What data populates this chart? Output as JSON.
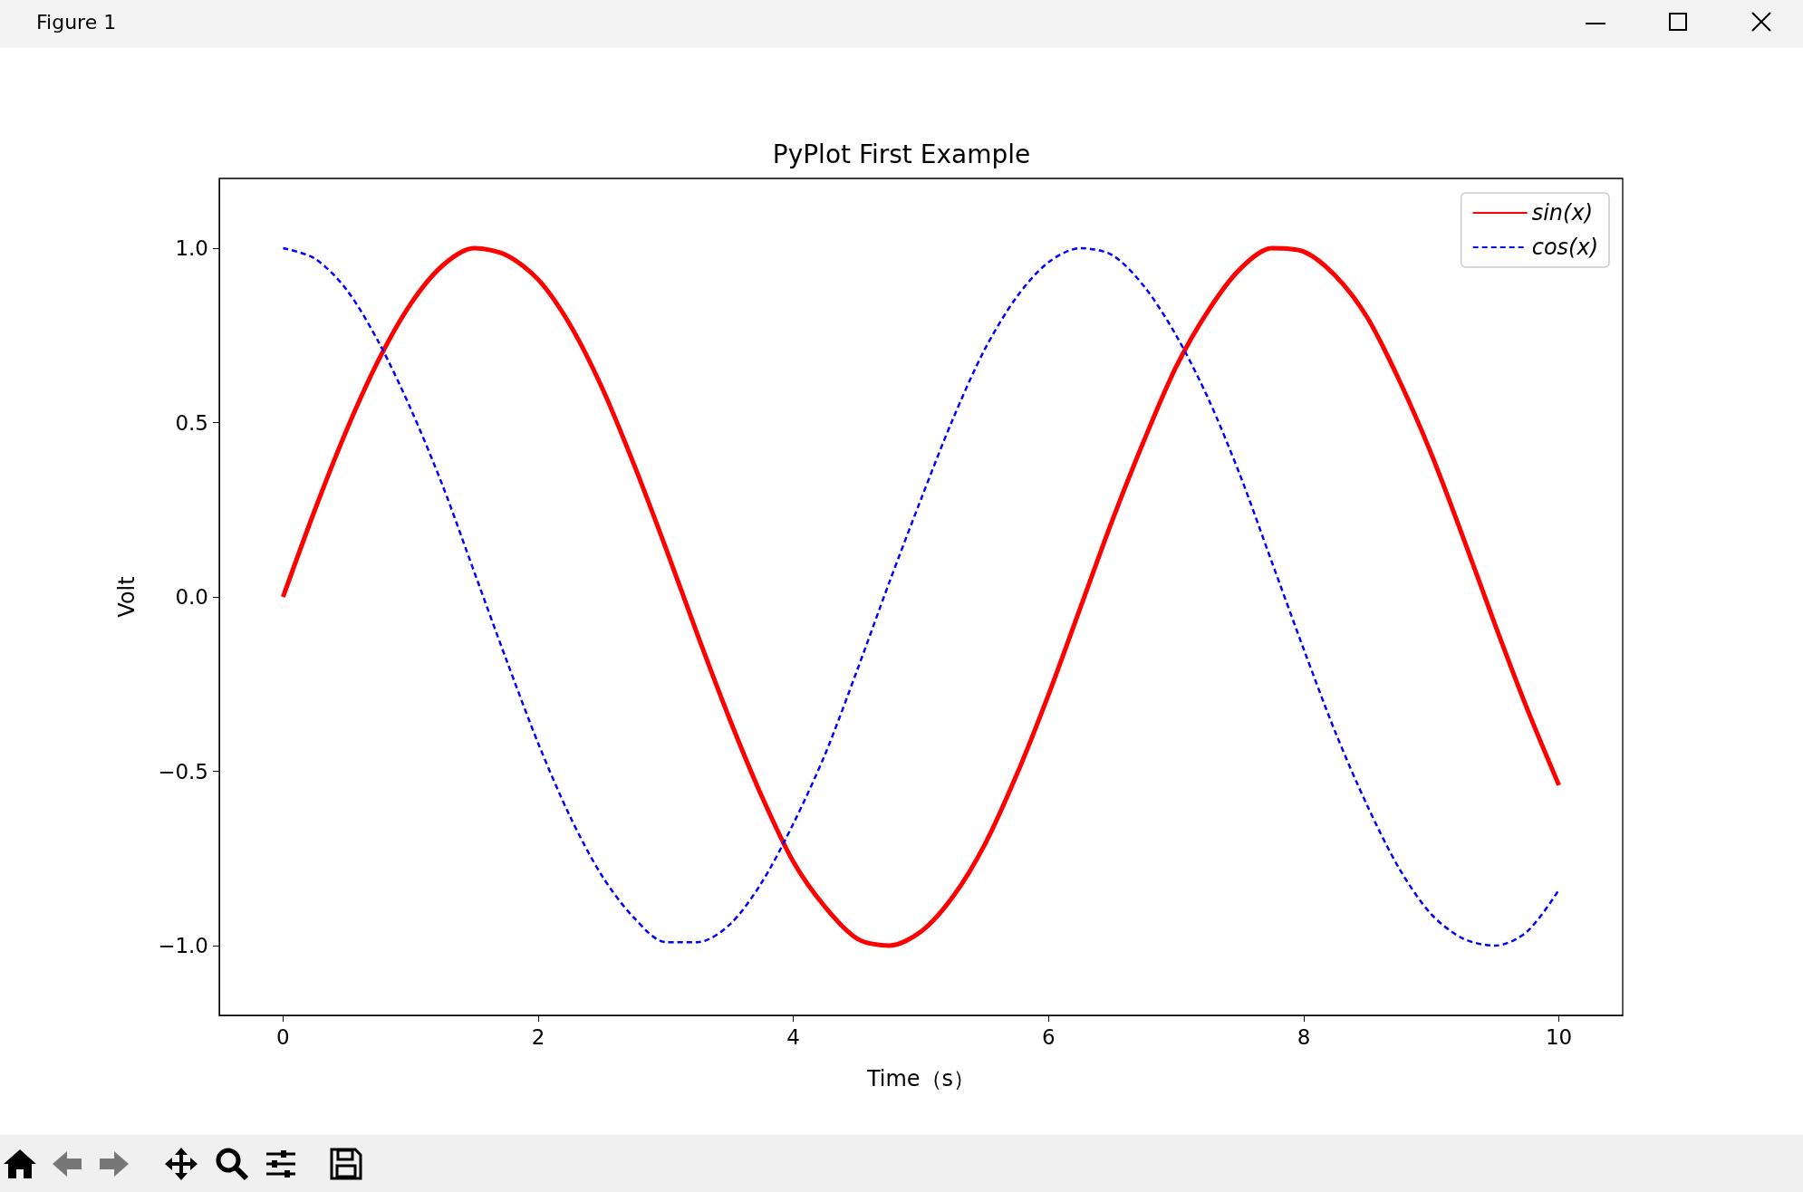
{
  "chart_data": {
    "type": "line",
    "title": "PyPlot First Example",
    "xlabel": "Time（s）",
    "ylabel": "Volt",
    "annotations": [
      "Figure 1"
    ],
    "x": [
      0,
      0.25,
      0.5,
      0.75,
      1,
      1.25,
      1.5,
      1.75,
      2,
      2.25,
      2.5,
      2.75,
      3,
      3.25,
      3.5,
      3.75,
      4,
      4.25,
      4.5,
      4.75,
      5,
      5.25,
      5.5,
      5.75,
      6,
      6.25,
      6.5,
      6.75,
      7,
      7.25,
      7.5,
      7.75,
      8,
      8.25,
      8.5,
      8.75,
      9,
      9.25,
      9.5,
      9.75,
      10
    ],
    "series": [
      {
        "name": "sin(x)",
        "color": "#ff0000",
        "line_style": "solid",
        "values": [
          0,
          0.25,
          0.48,
          0.68,
          0.84,
          0.95,
          1.0,
          0.98,
          0.91,
          0.78,
          0.6,
          0.38,
          0.14,
          -0.11,
          -0.35,
          -0.57,
          -0.76,
          -0.89,
          -0.98,
          -1.0,
          -0.96,
          -0.86,
          -0.71,
          -0.51,
          -0.28,
          -0.03,
          0.22,
          0.45,
          0.66,
          0.82,
          0.94,
          1.0,
          0.99,
          0.92,
          0.8,
          0.62,
          0.41,
          0.17,
          -0.08,
          -0.32,
          -0.54
        ]
      },
      {
        "name": "cos(x)",
        "color": "#0000ff",
        "line_style": "dashed",
        "values": [
          1.0,
          0.97,
          0.88,
          0.73,
          0.54,
          0.32,
          0.07,
          -0.18,
          -0.42,
          -0.63,
          -0.8,
          -0.92,
          -0.99,
          -0.99,
          -0.94,
          -0.82,
          -0.65,
          -0.45,
          -0.21,
          0.04,
          0.28,
          0.51,
          0.71,
          0.86,
          0.96,
          1.0,
          0.98,
          0.89,
          0.75,
          0.57,
          0.35,
          0.1,
          -0.15,
          -0.39,
          -0.6,
          -0.78,
          -0.91,
          -0.98,
          -1.0,
          -0.96,
          -0.84
        ]
      }
    ],
    "xlim": [
      -0.5,
      10.5
    ],
    "xticks": [
      0,
      2,
      4,
      6,
      8,
      10
    ],
    "ylim": [
      -1.2,
      1.2
    ],
    "yticks": [
      {
        "value": -1.0,
        "label": "−1.0"
      },
      {
        "value": -0.5,
        "label": "−0.5"
      },
      {
        "value": 0,
        "label": "0.0"
      },
      {
        "value": 0.5,
        "label": "0.5"
      },
      {
        "value": 1.0,
        "label": "1.0"
      }
    ],
    "grid": false,
    "legend": "top right",
    "marker": "none"
  }
}
